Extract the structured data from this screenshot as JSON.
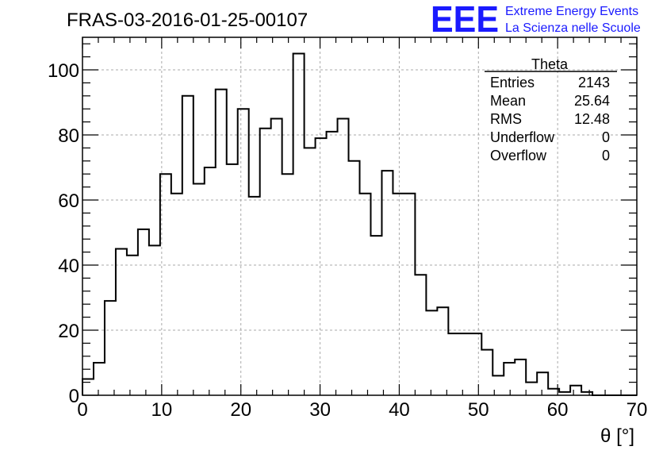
{
  "title": "FRAS-03-2016-01-25-00107",
  "logo": {
    "letters": "EEE",
    "line1": "Extreme Energy Events",
    "line2": "La Scienza nelle Scuole",
    "color": "#1a1aff"
  },
  "stats": {
    "title": "Theta",
    "rows": [
      {
        "label": "Entries",
        "value": "2143"
      },
      {
        "label": "Mean",
        "value": "25.64"
      },
      {
        "label": "RMS",
        "value": "12.48"
      },
      {
        "label": "Underflow",
        "value": "0"
      },
      {
        "label": "Overflow",
        "value": "0"
      }
    ]
  },
  "chart_data": {
    "type": "histogram",
    "xlabel": "θ [°]",
    "ylabel": "",
    "xlim": [
      0,
      70
    ],
    "ylim": [
      0,
      110
    ],
    "grid": true,
    "xticks": [
      0,
      10,
      20,
      30,
      40,
      50,
      60,
      70
    ],
    "yticks": [
      0,
      20,
      40,
      60,
      80,
      100
    ],
    "bin_width": 1.4,
    "bin_start": 0,
    "values": [
      5,
      10,
      29,
      45,
      43,
      51,
      46,
      68,
      62,
      92,
      65,
      70,
      94,
      71,
      88,
      61,
      82,
      85,
      68,
      105,
      76,
      79,
      81,
      85,
      72,
      62,
      49,
      69,
      62,
      62,
      37,
      26,
      27,
      19,
      19,
      19,
      14,
      6,
      10,
      11,
      4,
      7,
      2,
      1,
      3,
      1,
      0,
      0,
      0,
      0
    ],
    "line_color": "#000000"
  }
}
